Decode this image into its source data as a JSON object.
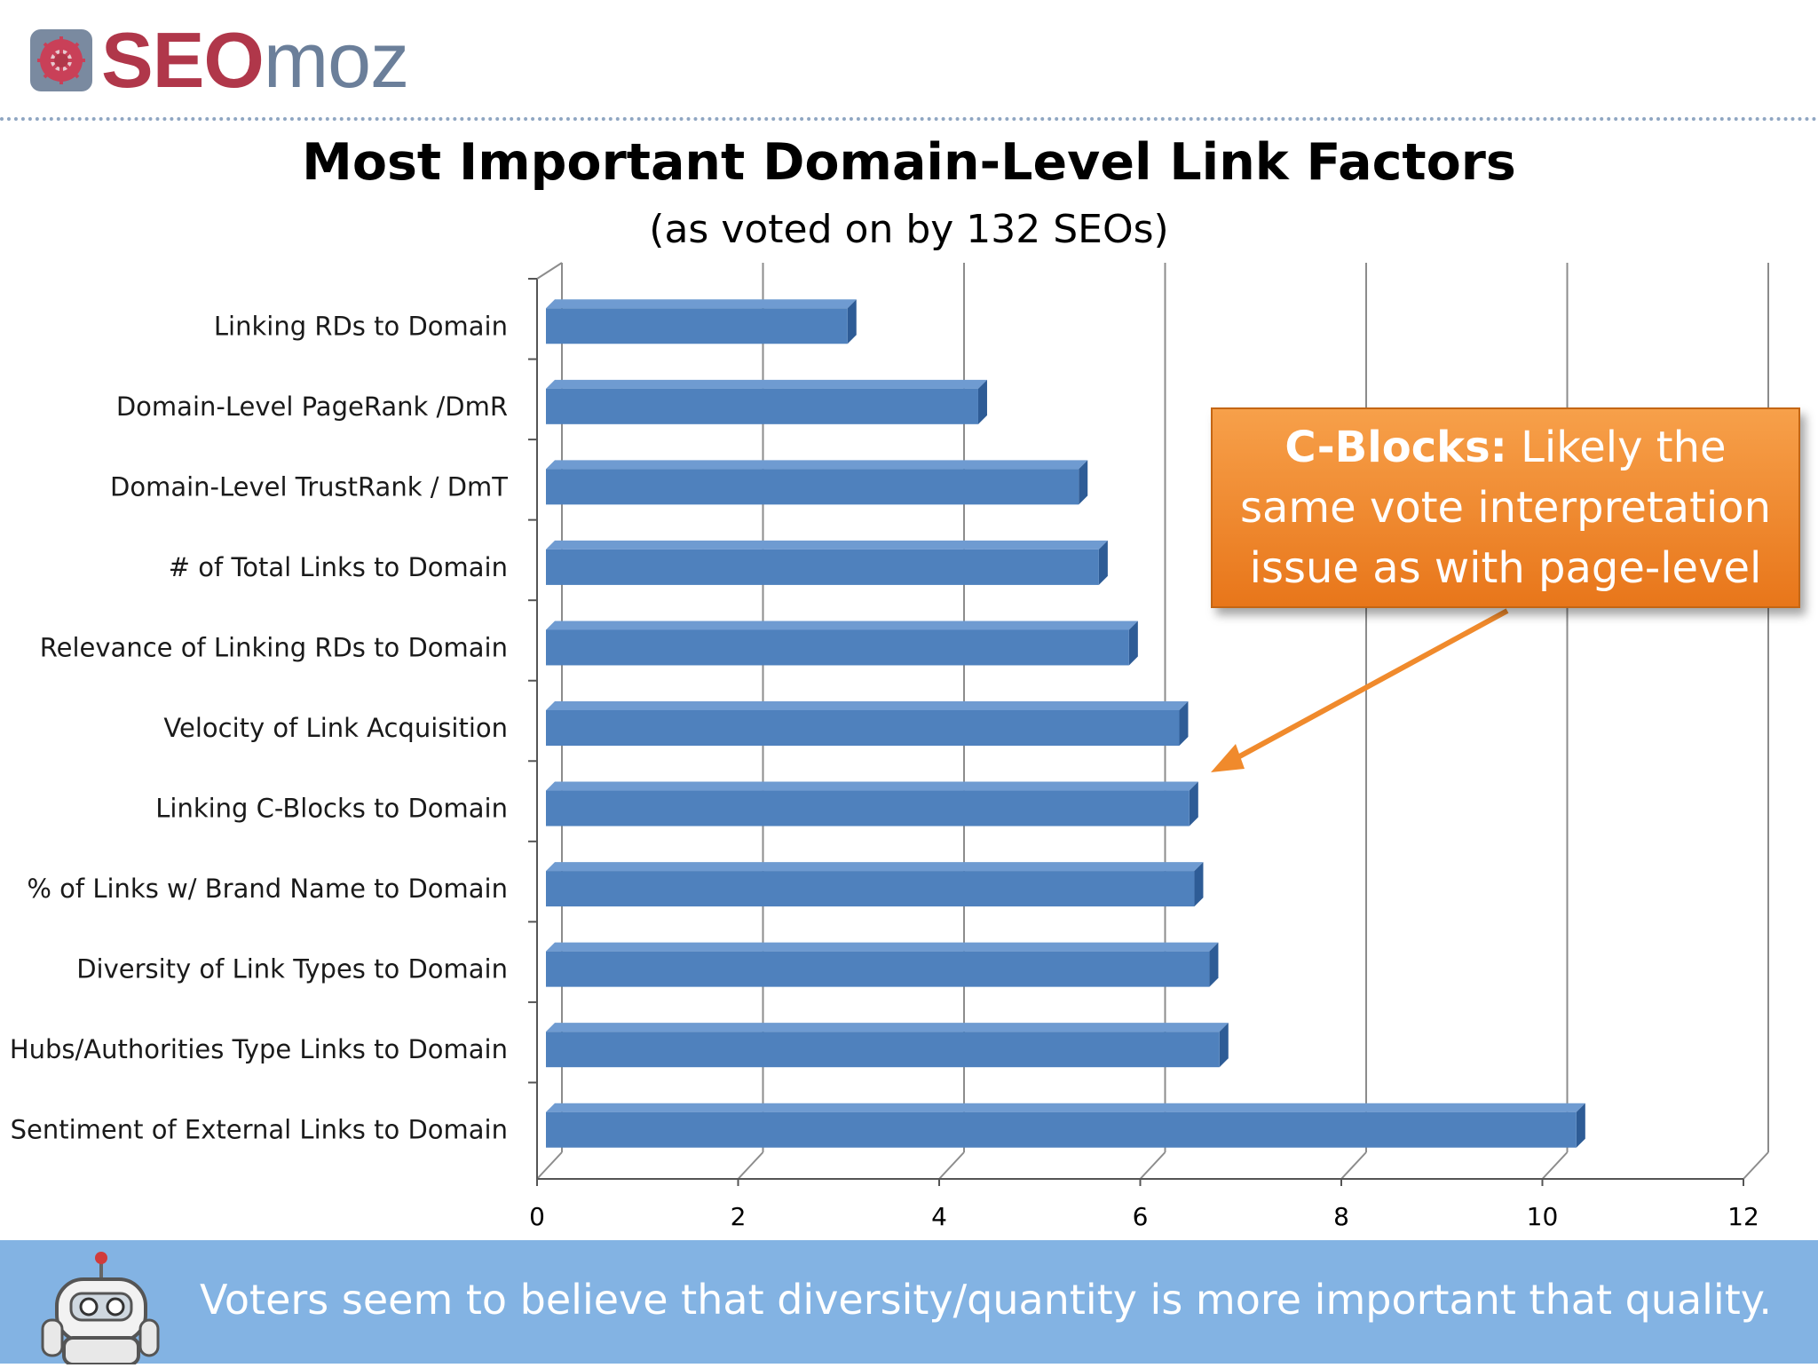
{
  "header": {
    "logo_text_bold": "SEO",
    "logo_text_light": "moz"
  },
  "callout": {
    "bold": "C-Blocks:",
    "text": "Likely the same vote interpretation issue as with page-level"
  },
  "footer": {
    "text": "Voters seem to believe that diversity/quantity is more important that quality."
  },
  "colors": {
    "bar": "#4f81bd",
    "callout": "#f08a2c",
    "footer": "#83b3e3",
    "arrow": "#f08a2c"
  },
  "icons": [
    "seomoz-logo-icon",
    "robot-mascot-icon",
    "callout-arrow-icon"
  ],
  "chart_data": {
    "type": "bar",
    "orientation": "horizontal",
    "title": "Most Important Domain-Level Link Factors",
    "subtitle": "(as voted on by 132 SEOs)",
    "xlabel": "",
    "ylabel": "",
    "xlim": [
      0,
      12
    ],
    "xticks": [
      0,
      2,
      4,
      6,
      8,
      10,
      12
    ],
    "grid": "vertical",
    "categories": [
      "Linking RDs to Domain",
      "Domain-Level PageRank /DmR",
      "Domain-Level TrustRank / DmT",
      "# of Total Links to Domain",
      "Relevance of Linking RDs to Domain",
      "Velocity of Link Acquisition",
      "Linking C-Blocks to Domain",
      "% of Links w/ Brand Name to Domain",
      "Diversity of Link Types to Domain",
      "Hubs/Authorities  Type Links to Domain",
      "Sentiment of External Links to Domain"
    ],
    "values": [
      3.0,
      4.3,
      5.3,
      5.5,
      5.8,
      6.3,
      6.4,
      6.45,
      6.6,
      6.7,
      10.25
    ]
  }
}
